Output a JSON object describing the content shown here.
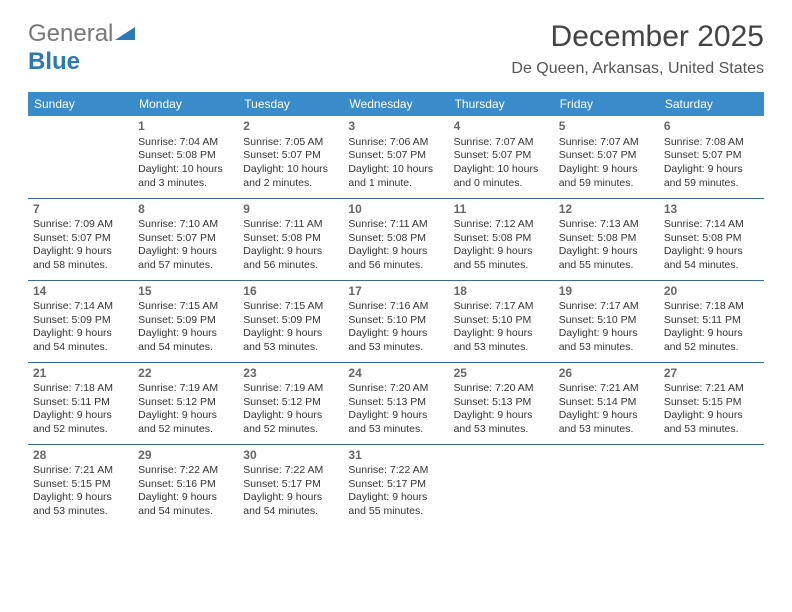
{
  "logo": {
    "part1": "General",
    "part2": "Blue"
  },
  "title": "December 2025",
  "location": "De Queen, Arkansas, United States",
  "colors": {
    "header_bg": "#3a8bc9",
    "header_text": "#ffffff",
    "row_border": "#3a6a9a",
    "logo_gray": "#777777",
    "logo_blue": "#2a7ab9",
    "body_text": "#333333"
  },
  "dayNames": [
    "Sunday",
    "Monday",
    "Tuesday",
    "Wednesday",
    "Thursday",
    "Friday",
    "Saturday"
  ],
  "weeks": [
    [
      null,
      {
        "n": "1",
        "sr": "7:04 AM",
        "ss": "5:08 PM",
        "dl": "10 hours and 3 minutes."
      },
      {
        "n": "2",
        "sr": "7:05 AM",
        "ss": "5:07 PM",
        "dl": "10 hours and 2 minutes."
      },
      {
        "n": "3",
        "sr": "7:06 AM",
        "ss": "5:07 PM",
        "dl": "10 hours and 1 minute."
      },
      {
        "n": "4",
        "sr": "7:07 AM",
        "ss": "5:07 PM",
        "dl": "10 hours and 0 minutes."
      },
      {
        "n": "5",
        "sr": "7:07 AM",
        "ss": "5:07 PM",
        "dl": "9 hours and 59 minutes."
      },
      {
        "n": "6",
        "sr": "7:08 AM",
        "ss": "5:07 PM",
        "dl": "9 hours and 59 minutes."
      }
    ],
    [
      {
        "n": "7",
        "sr": "7:09 AM",
        "ss": "5:07 PM",
        "dl": "9 hours and 58 minutes."
      },
      {
        "n": "8",
        "sr": "7:10 AM",
        "ss": "5:07 PM",
        "dl": "9 hours and 57 minutes."
      },
      {
        "n": "9",
        "sr": "7:11 AM",
        "ss": "5:08 PM",
        "dl": "9 hours and 56 minutes."
      },
      {
        "n": "10",
        "sr": "7:11 AM",
        "ss": "5:08 PM",
        "dl": "9 hours and 56 minutes."
      },
      {
        "n": "11",
        "sr": "7:12 AM",
        "ss": "5:08 PM",
        "dl": "9 hours and 55 minutes."
      },
      {
        "n": "12",
        "sr": "7:13 AM",
        "ss": "5:08 PM",
        "dl": "9 hours and 55 minutes."
      },
      {
        "n": "13",
        "sr": "7:14 AM",
        "ss": "5:08 PM",
        "dl": "9 hours and 54 minutes."
      }
    ],
    [
      {
        "n": "14",
        "sr": "7:14 AM",
        "ss": "5:09 PM",
        "dl": "9 hours and 54 minutes."
      },
      {
        "n": "15",
        "sr": "7:15 AM",
        "ss": "5:09 PM",
        "dl": "9 hours and 54 minutes."
      },
      {
        "n": "16",
        "sr": "7:15 AM",
        "ss": "5:09 PM",
        "dl": "9 hours and 53 minutes."
      },
      {
        "n": "17",
        "sr": "7:16 AM",
        "ss": "5:10 PM",
        "dl": "9 hours and 53 minutes."
      },
      {
        "n": "18",
        "sr": "7:17 AM",
        "ss": "5:10 PM",
        "dl": "9 hours and 53 minutes."
      },
      {
        "n": "19",
        "sr": "7:17 AM",
        "ss": "5:10 PM",
        "dl": "9 hours and 53 minutes."
      },
      {
        "n": "20",
        "sr": "7:18 AM",
        "ss": "5:11 PM",
        "dl": "9 hours and 52 minutes."
      }
    ],
    [
      {
        "n": "21",
        "sr": "7:18 AM",
        "ss": "5:11 PM",
        "dl": "9 hours and 52 minutes."
      },
      {
        "n": "22",
        "sr": "7:19 AM",
        "ss": "5:12 PM",
        "dl": "9 hours and 52 minutes."
      },
      {
        "n": "23",
        "sr": "7:19 AM",
        "ss": "5:12 PM",
        "dl": "9 hours and 52 minutes."
      },
      {
        "n": "24",
        "sr": "7:20 AM",
        "ss": "5:13 PM",
        "dl": "9 hours and 53 minutes."
      },
      {
        "n": "25",
        "sr": "7:20 AM",
        "ss": "5:13 PM",
        "dl": "9 hours and 53 minutes."
      },
      {
        "n": "26",
        "sr": "7:21 AM",
        "ss": "5:14 PM",
        "dl": "9 hours and 53 minutes."
      },
      {
        "n": "27",
        "sr": "7:21 AM",
        "ss": "5:15 PM",
        "dl": "9 hours and 53 minutes."
      }
    ],
    [
      {
        "n": "28",
        "sr": "7:21 AM",
        "ss": "5:15 PM",
        "dl": "9 hours and 53 minutes."
      },
      {
        "n": "29",
        "sr": "7:22 AM",
        "ss": "5:16 PM",
        "dl": "9 hours and 54 minutes."
      },
      {
        "n": "30",
        "sr": "7:22 AM",
        "ss": "5:17 PM",
        "dl": "9 hours and 54 minutes."
      },
      {
        "n": "31",
        "sr": "7:22 AM",
        "ss": "5:17 PM",
        "dl": "9 hours and 55 minutes."
      },
      null,
      null,
      null
    ]
  ],
  "labels": {
    "sunrise": "Sunrise: ",
    "sunset": "Sunset: ",
    "daylight": "Daylight: "
  }
}
